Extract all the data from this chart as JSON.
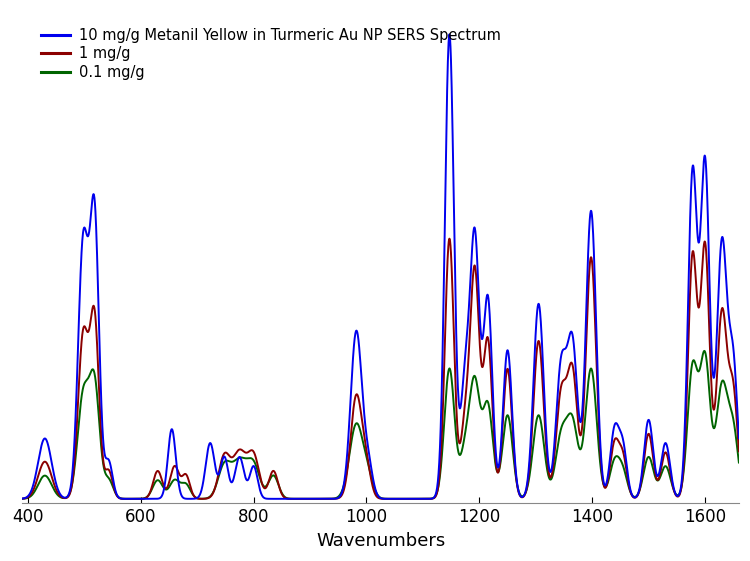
{
  "title": "",
  "xlabel": "Wavenumbers",
  "ylabel": "",
  "xlim": [
    390,
    1660
  ],
  "ylim": [
    -0.01,
    1.05
  ],
  "legend_entries": [
    "10 mg/g Metanil Yellow in Turmeric Au NP SERS Spectrum",
    "1 mg/g",
    "0.1 mg/g"
  ],
  "colors": [
    "#0000EE",
    "#8B0000",
    "#006400"
  ],
  "linewidths": [
    1.4,
    1.4,
    1.4
  ],
  "background_color": "#FFFFFF",
  "xlabel_fontsize": 13,
  "legend_fontsize": 10.5
}
